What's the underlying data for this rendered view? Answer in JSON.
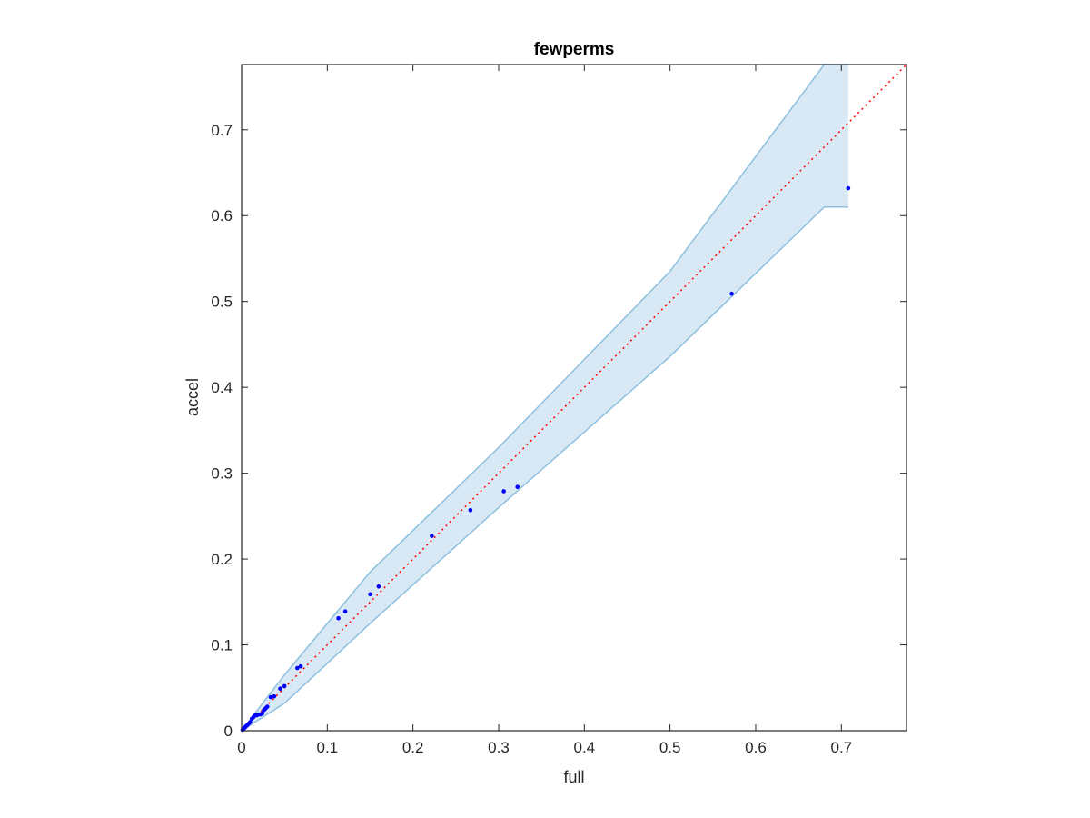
{
  "chart_data": {
    "type": "scatter",
    "title": "fewperms",
    "xlabel": "full",
    "ylabel": "accel",
    "xlim": [
      0,
      0.776
    ],
    "ylim": [
      0,
      0.776
    ],
    "xticks": [
      0,
      0.1,
      0.2,
      0.3,
      0.4,
      0.5,
      0.6,
      0.7
    ],
    "yticks": [
      0,
      0.1,
      0.2,
      0.3,
      0.4,
      0.5,
      0.6,
      0.7
    ],
    "xtick_labels": [
      "0",
      "0.1",
      "0.2",
      "0.3",
      "0.4",
      "0.5",
      "0.6",
      "0.7"
    ],
    "ytick_labels": [
      "0",
      "0.1",
      "0.2",
      "0.3",
      "0.4",
      "0.5",
      "0.6",
      "0.7"
    ],
    "grid": false,
    "colors": {
      "points": "#0000ff",
      "band_fill": "#d8e8f4",
      "band_edge": "#8ec0e0",
      "reference_line": "#ff0000",
      "axes": "#262626"
    },
    "band": {
      "x": [
        0,
        0.05,
        0.15,
        0.3,
        0.5,
        0.68,
        0.708
      ],
      "upper": [
        0,
        0.065,
        0.185,
        0.33,
        0.535,
        0.776,
        0.776
      ],
      "lower": [
        0,
        0.032,
        0.125,
        0.26,
        0.436,
        0.61,
        0.61
      ]
    },
    "reference_line": {
      "x": [
        0,
        0.776
      ],
      "y": [
        0,
        0.776
      ],
      "style": "dotted"
    },
    "points": {
      "x": [
        0.001,
        0.002,
        0.003,
        0.004,
        0.005,
        0.006,
        0.008,
        0.01,
        0.012,
        0.014,
        0.016,
        0.018,
        0.02,
        0.022,
        0.024,
        0.026,
        0.028,
        0.03,
        0.034,
        0.038,
        0.045,
        0.05,
        0.065,
        0.069,
        0.113,
        0.121,
        0.15,
        0.16,
        0.222,
        0.267,
        0.306,
        0.322,
        0.572,
        0.708
      ],
      "y": [
        0.001,
        0.002,
        0.003,
        0.004,
        0.005,
        0.006,
        0.008,
        0.01,
        0.014,
        0.016,
        0.018,
        0.018,
        0.019,
        0.019,
        0.02,
        0.024,
        0.026,
        0.028,
        0.039,
        0.04,
        0.049,
        0.052,
        0.073,
        0.075,
        0.131,
        0.139,
        0.159,
        0.168,
        0.227,
        0.257,
        0.279,
        0.284,
        0.509,
        0.632
      ]
    }
  }
}
